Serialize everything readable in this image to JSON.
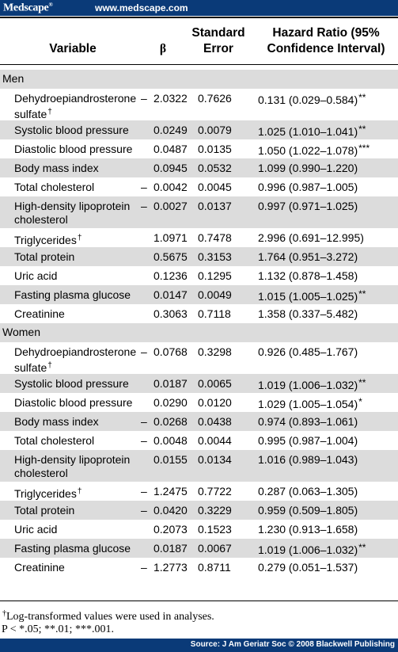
{
  "topbar": {
    "brand": "Medscape",
    "brand_mark": "®",
    "url": "www.medscape.com"
  },
  "headers": {
    "variable": "Variable",
    "beta": "β",
    "se_line1": "Standard",
    "se_line2": "Error",
    "hr_line1": "Hazard Ratio (95%",
    "hr_line2": "Confidence Interval)"
  },
  "sections": [
    {
      "label": "Men",
      "rows": [
        {
          "var1": "Dehydroepiandrosterone",
          "var2": "sulfate",
          "dagger": "†",
          "sign": "–",
          "beta": "2.0322",
          "se": "0.7626",
          "hr": "0.131 (0.029–0.584)",
          "sig": "**"
        },
        {
          "var1": "Systolic blood pressure",
          "var2": "",
          "dagger": "",
          "sign": "",
          "beta": "0.0249",
          "se": "0.0079",
          "hr": "1.025 (1.010–1.041)",
          "sig": "**"
        },
        {
          "var1": "Diastolic blood pressure",
          "var2": "",
          "dagger": "",
          "sign": "",
          "beta": "0.0487",
          "se": "0.0135",
          "hr": "1.050 (1.022–1.078)",
          "sig": "***"
        },
        {
          "var1": "Body mass index",
          "var2": "",
          "dagger": "",
          "sign": "",
          "beta": "0.0945",
          "se": "0.0532",
          "hr": "1.099 (0.990–1.220)",
          "sig": ""
        },
        {
          "var1": "Total cholesterol",
          "var2": "",
          "dagger": "",
          "sign": "–",
          "beta": "0.0042",
          "se": "0.0045",
          "hr": "0.996 (0.987–1.005)",
          "sig": ""
        },
        {
          "var1": "High-density lipoprotein",
          "var2": "cholesterol",
          "dagger": "",
          "sign": "–",
          "beta": "0.0027",
          "se": "0.0137",
          "hr": "0.997 (0.971–1.025)",
          "sig": ""
        },
        {
          "var1": "Triglycerides",
          "var2": "",
          "dagger": "†",
          "sign": "",
          "beta": "1.0971",
          "se": "0.7478",
          "hr": "2.996 (0.691–12.995)",
          "sig": ""
        },
        {
          "var1": "Total protein",
          "var2": "",
          "dagger": "",
          "sign": "",
          "beta": "0.5675",
          "se": "0.3153",
          "hr": "1.764 (0.951–3.272)",
          "sig": ""
        },
        {
          "var1": "Uric acid",
          "var2": "",
          "dagger": "",
          "sign": "",
          "beta": "0.1236",
          "se": "0.1295",
          "hr": "1.132 (0.878–1.458)",
          "sig": ""
        },
        {
          "var1": "Fasting plasma glucose",
          "var2": "",
          "dagger": "",
          "sign": "",
          "beta": "0.0147",
          "se": "0.0049",
          "hr": "1.015 (1.005–1.025)",
          "sig": "**"
        },
        {
          "var1": "Creatinine",
          "var2": "",
          "dagger": "",
          "sign": "",
          "beta": "0.3063",
          "se": "0.7118",
          "hr": "1.358 (0.337–5.482)",
          "sig": ""
        }
      ]
    },
    {
      "label": "Women",
      "rows": [
        {
          "var1": "Dehydroepiandrosterone",
          "var2": "sulfate",
          "dagger": "†",
          "sign": "–",
          "beta": "0.0768",
          "se": "0.3298",
          "hr": "0.926 (0.485–1.767)",
          "sig": ""
        },
        {
          "var1": "Systolic blood pressure",
          "var2": "",
          "dagger": "",
          "sign": "",
          "beta": "0.0187",
          "se": "0.0065",
          "hr": "1.019 (1.006–1.032)",
          "sig": "**"
        },
        {
          "var1": "Diastolic blood pressure",
          "var2": "",
          "dagger": "",
          "sign": "",
          "beta": "0.0290",
          "se": "0.0120",
          "hr": "1.029 (1.005–1.054)",
          "sig": "*"
        },
        {
          "var1": "Body mass index",
          "var2": "",
          "dagger": "",
          "sign": "–",
          "beta": "0.0268",
          "se": "0.0438",
          "hr": "0.974 (0.893–1.061)",
          "sig": ""
        },
        {
          "var1": "Total cholesterol",
          "var2": "",
          "dagger": "",
          "sign": "–",
          "beta": "0.0048",
          "se": "0.0044",
          "hr": "0.995 (0.987–1.004)",
          "sig": ""
        },
        {
          "var1": "High-density lipoprotein",
          "var2": "cholesterol",
          "dagger": "",
          "sign": "",
          "beta": "0.0155",
          "se": "0.0134",
          "hr": "1.016 (0.989–1.043)",
          "sig": ""
        },
        {
          "var1": "Triglycerides",
          "var2": "",
          "dagger": "†",
          "sign": "–",
          "beta": "1.2475",
          "se": "0.7722",
          "hr": "0.287 (0.063–1.305)",
          "sig": ""
        },
        {
          "var1": "Total protein",
          "var2": "",
          "dagger": "",
          "sign": "–",
          "beta": "0.0420",
          "se": "0.3229",
          "hr": "0.959 (0.509–1.805)",
          "sig": ""
        },
        {
          "var1": "Uric acid",
          "var2": "",
          "dagger": "",
          "sign": "",
          "beta": "0.2073",
          "se": "0.1523",
          "hr": "1.230 (0.913–1.658)",
          "sig": ""
        },
        {
          "var1": "Fasting plasma glucose",
          "var2": "",
          "dagger": "",
          "sign": "",
          "beta": "0.0187",
          "se": "0.0067",
          "hr": "1.019 (1.006–1.032)",
          "sig": "**"
        },
        {
          "var1": "Creatinine",
          "var2": "",
          "dagger": "",
          "sign": "–",
          "beta": "1.2773",
          "se": "0.8711",
          "hr": "0.279 (0.051–1.537)",
          "sig": ""
        }
      ]
    }
  ],
  "footnotes": {
    "dagger_mark": "†",
    "dagger_text": "Log-transformed values were used in analyses.",
    "p_text": "P < *.05; **.01; ***.001."
  },
  "source": "Source: J Am Geriatr Soc © 2008 Blackwell Publishing"
}
